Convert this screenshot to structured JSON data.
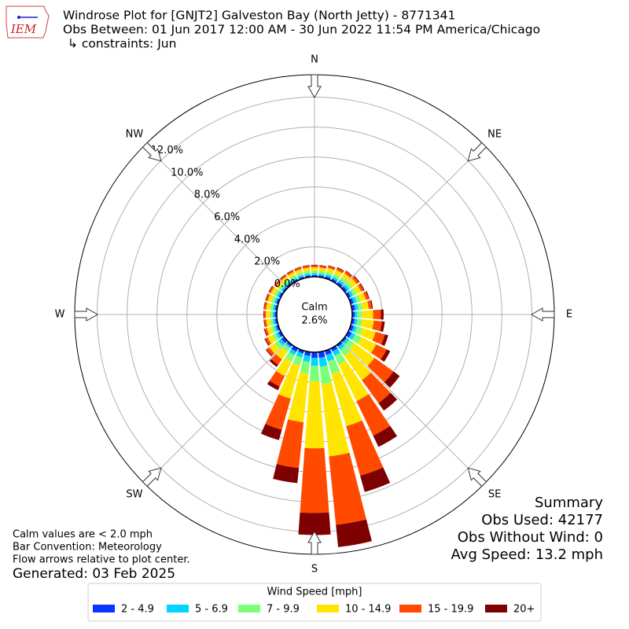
{
  "logo_text": "IEM",
  "chart_data": {
    "type": "windrose",
    "title": "Windrose Plot for [GNJT2] Galveston Bay (North Jetty) - 8771341",
    "subtitle": "Obs Between: 01 Jun 2017 12:00 AM - 30 Jun 2022 11:54 PM America/Chicago",
    "constraints": "↳ constraints: Jun",
    "compass": [
      "N",
      "NE",
      "E",
      "SE",
      "S",
      "SW",
      "W",
      "NW"
    ],
    "categories": [
      null,
      null,
      null,
      null,
      null,
      null,
      null,
      null,
      null,
      null,
      null,
      null,
      null,
      null,
      null,
      null,
      null,
      null,
      null,
      null,
      null,
      null,
      null,
      null,
      null,
      null,
      null,
      null,
      null,
      null,
      null,
      null,
      null,
      null,
      null,
      null
    ],
    "ylim": [
      0,
      13.5
    ],
    "yticks": [
      {
        "value": 0,
        "label": "0.0%"
      },
      {
        "value": 2,
        "label": "2.0%"
      },
      {
        "value": 4,
        "label": "4.0%"
      },
      {
        "value": 6,
        "label": "6.0%"
      },
      {
        "value": 8,
        "label": "8.0%"
      },
      {
        "value": 10,
        "label": "10.0%"
      },
      {
        "value": 12,
        "label": "12.0%"
      }
    ],
    "grid": true,
    "calm": {
      "name": "Calm",
      "value": 2.6,
      "value_label": "2.6%"
    },
    "legend_title": "Wind Speed [mph]",
    "series": [
      {
        "name": "2 - 4.9",
        "color": "#0a34ff",
        "values": [
          0.12,
          0.12,
          0.14,
          0.15,
          0.17,
          0.18,
          0.18,
          0.2,
          0.21,
          0.17,
          0.18,
          0.21,
          0.25,
          0.14,
          0.16,
          0.22,
          0.29,
          0.39,
          0.37,
          0.26,
          0.19,
          0.25,
          0.14,
          0.23,
          0.18,
          0.15,
          0.14,
          0.14,
          0.14,
          0.14,
          0.14,
          0.12,
          0.12,
          0.12,
          0.12,
          0.12
        ]
      },
      {
        "name": "5 - 6.9",
        "color": "#00d5ff",
        "values": [
          0.12,
          0.12,
          0.14,
          0.15,
          0.17,
          0.18,
          0.18,
          0.2,
          0.21,
          0.17,
          0.18,
          0.21,
          0.25,
          0.2,
          0.24,
          0.33,
          0.44,
          0.59,
          0.53,
          0.4,
          0.28,
          0.25,
          0.14,
          0.23,
          0.18,
          0.15,
          0.14,
          0.14,
          0.14,
          0.14,
          0.14,
          0.12,
          0.12,
          0.12,
          0.12,
          0.12
        ]
      },
      {
        "name": "7 - 9.9",
        "color": "#7cff79",
        "values": [
          0.16,
          0.16,
          0.18,
          0.2,
          0.22,
          0.24,
          0.24,
          0.26,
          0.28,
          0.32,
          0.33,
          0.39,
          0.47,
          0.41,
          0.49,
          0.66,
          0.88,
          1.18,
          1.05,
          0.79,
          0.56,
          0.47,
          0.27,
          0.3,
          0.24,
          0.2,
          0.18,
          0.18,
          0.18,
          0.18,
          0.18,
          0.16,
          0.16,
          0.16,
          0.16,
          0.16
        ]
      },
      {
        "name": "10 - 14.9",
        "color": "#ffe500",
        "values": [
          0.24,
          0.24,
          0.27,
          0.3,
          0.33,
          0.36,
          0.36,
          0.39,
          0.42,
          0.74,
          0.77,
          0.91,
          1.08,
          1.67,
          2.0,
          2.7,
          3.63,
          4.85,
          4.47,
          3.26,
          2.29,
          1.08,
          0.63,
          0.45,
          0.36,
          0.3,
          0.27,
          0.27,
          0.27,
          0.27,
          0.27,
          0.24,
          0.24,
          0.24,
          0.24,
          0.24
        ]
      },
      {
        "name": "15 - 19.9",
        "color": "#ff4a00",
        "values": [
          0.12,
          0.12,
          0.13,
          0.15,
          0.16,
          0.18,
          0.18,
          0.19,
          0.21,
          0.52,
          0.55,
          0.65,
          0.78,
          1.57,
          1.89,
          2.56,
          3.43,
          4.59,
          4.32,
          3.08,
          2.17,
          0.78,
          0.45,
          0.22,
          0.18,
          0.15,
          0.13,
          0.13,
          0.13,
          0.13,
          0.13,
          0.12,
          0.12,
          0.12,
          0.12,
          0.12
        ]
      },
      {
        "name": "20+",
        "color": "#7f0000",
        "values": [
          0.04,
          0.04,
          0.04,
          0.05,
          0.05,
          0.06,
          0.06,
          0.06,
          0.07,
          0.18,
          0.19,
          0.23,
          0.27,
          0.51,
          0.62,
          0.83,
          1.13,
          1.5,
          1.47,
          1.01,
          0.71,
          0.27,
          0.17,
          0.07,
          0.06,
          0.05,
          0.04,
          0.04,
          0.04,
          0.04,
          0.04,
          0.04,
          0.04,
          0.04,
          0.04,
          0.04
        ]
      }
    ],
    "summary": [
      "Summary",
      "Obs Used: 42177",
      "Obs Without Wind: 0",
      "Avg Speed: 13.2 mph"
    ],
    "notes": [
      "Calm values are < 2.0 mph",
      "Bar Convention: Meteorology",
      "Flow arrows relative to plot center."
    ],
    "generated": "Generated: 03 Feb 2025"
  }
}
